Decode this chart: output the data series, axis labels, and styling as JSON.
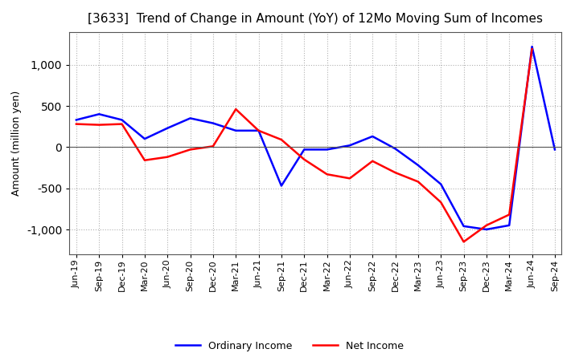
{
  "title": "[3633]  Trend of Change in Amount (YoY) of 12Mo Moving Sum of Incomes",
  "ylabel": "Amount (million yen)",
  "x_labels": [
    "Jun-19",
    "Sep-19",
    "Dec-19",
    "Mar-20",
    "Jun-20",
    "Sep-20",
    "Dec-20",
    "Mar-21",
    "Jun-21",
    "Sep-21",
    "Dec-21",
    "Mar-22",
    "Jun-22",
    "Sep-22",
    "Dec-22",
    "Mar-23",
    "Jun-23",
    "Sep-23",
    "Dec-23",
    "Mar-24",
    "Jun-24",
    "Sep-24"
  ],
  "ordinary_income": [
    330,
    400,
    330,
    100,
    230,
    350,
    290,
    200,
    200,
    -470,
    -30,
    -30,
    20,
    130,
    -20,
    -220,
    -450,
    -960,
    -1000,
    -950,
    1220,
    -30
  ],
  "net_income": [
    280,
    270,
    280,
    -160,
    -120,
    -30,
    10,
    460,
    200,
    90,
    -150,
    -330,
    -380,
    -170,
    -310,
    -420,
    -670,
    -1150,
    -950,
    -820,
    1190,
    null
  ],
  "ordinary_color": "#0000ff",
  "net_color": "#ff0000",
  "ylim": [
    -1300,
    1400
  ],
  "yticks": [
    -1000,
    -500,
    0,
    500,
    1000
  ],
  "background_color": "#ffffff",
  "grid_color": "#b0b0b0",
  "title_fontsize": 11,
  "ylabel_fontsize": 9,
  "tick_fontsize": 8,
  "legend_fontsize": 9,
  "linewidth": 1.8
}
